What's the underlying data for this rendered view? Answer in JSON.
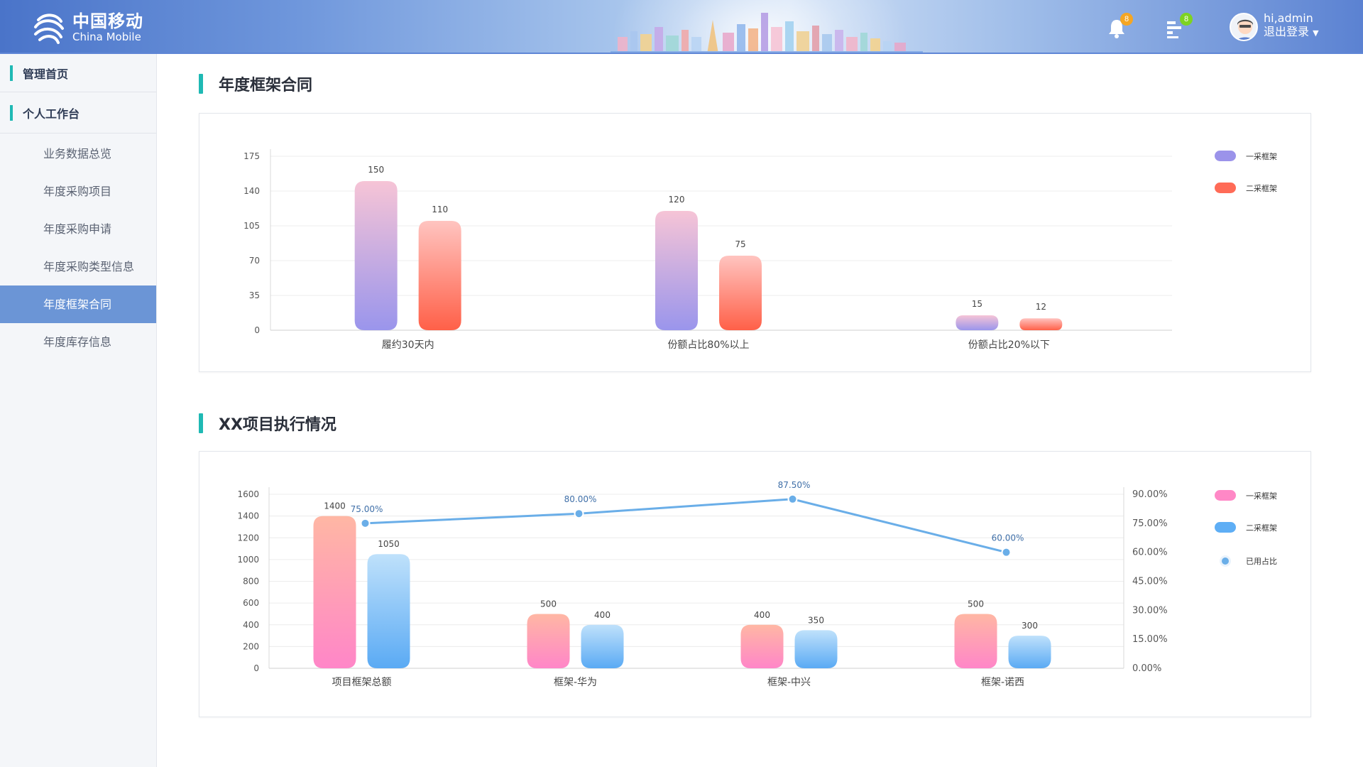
{
  "header": {
    "logo_cn": "中国移动",
    "logo_en": "China Mobile",
    "notifications_count": "8",
    "messages_count": "8",
    "user_greeting": "hi,admin",
    "logout_label": "退出登录",
    "colors": {
      "notification_badge": "#f5a623",
      "message_badge": "#7ed321"
    }
  },
  "sidebar": {
    "top_items": [
      {
        "label": "管理首页"
      },
      {
        "label": "个人工作台"
      }
    ],
    "items": [
      {
        "label": "业务数据总览",
        "active": false
      },
      {
        "label": "年度采购项目",
        "active": false
      },
      {
        "label": "年度采购申请",
        "active": false
      },
      {
        "label": "年度采购类型信息",
        "active": false
      },
      {
        "label": "年度框架合同",
        "active": true
      },
      {
        "label": "年度库存信息",
        "active": false
      }
    ]
  },
  "sections": [
    {
      "title": "年度框架合同"
    },
    {
      "title": "XX项目执行情况"
    }
  ],
  "chart_data": [
    {
      "type": "bar",
      "title": "",
      "categories": [
        "履约30天内",
        "份额占比80%以上",
        "份额占比20%以下"
      ],
      "series": [
        {
          "name": "一采框架",
          "values": [
            150,
            120,
            15
          ],
          "color": "#9b93ea"
        },
        {
          "name": "二采框架",
          "values": [
            110,
            75,
            12
          ],
          "color": "#ff6b57"
        }
      ],
      "yticks": [
        "0",
        "35",
        "70",
        "105",
        "140",
        "175"
      ],
      "ylim": [
        0,
        175
      ],
      "grid": true,
      "legend": "top-right"
    },
    {
      "type": "bar",
      "title": "",
      "categories": [
        "项目框架总额",
        "框架-华为",
        "框架-中兴",
        "框架-诺西"
      ],
      "series": [
        {
          "name": "一采框架",
          "values": [
            1400,
            500,
            400,
            500
          ],
          "color": "#ff88c6"
        },
        {
          "name": "二采框架",
          "values": [
            1050,
            400,
            350,
            300
          ],
          "color": "#5eaef5"
        }
      ],
      "line_series": {
        "name": "已用占比",
        "values": [
          75.0,
          80.0,
          87.5,
          60.0
        ],
        "labels": [
          "75.00%",
          "80.00%",
          "87.50%",
          "60.00%"
        ],
        "color": "#6aaee8"
      },
      "yticks_left": [
        "0",
        "200",
        "400",
        "600",
        "800",
        "1000",
        "1200",
        "1400",
        "1600"
      ],
      "yticks_right": [
        "0.00%",
        "15.00%",
        "30.00%",
        "45.00%",
        "60.00%",
        "75.00%",
        "90.00%"
      ],
      "ylim_left": [
        0,
        1600
      ],
      "ylim_right": [
        0,
        90
      ],
      "grid": true,
      "legend": "top-right"
    }
  ]
}
